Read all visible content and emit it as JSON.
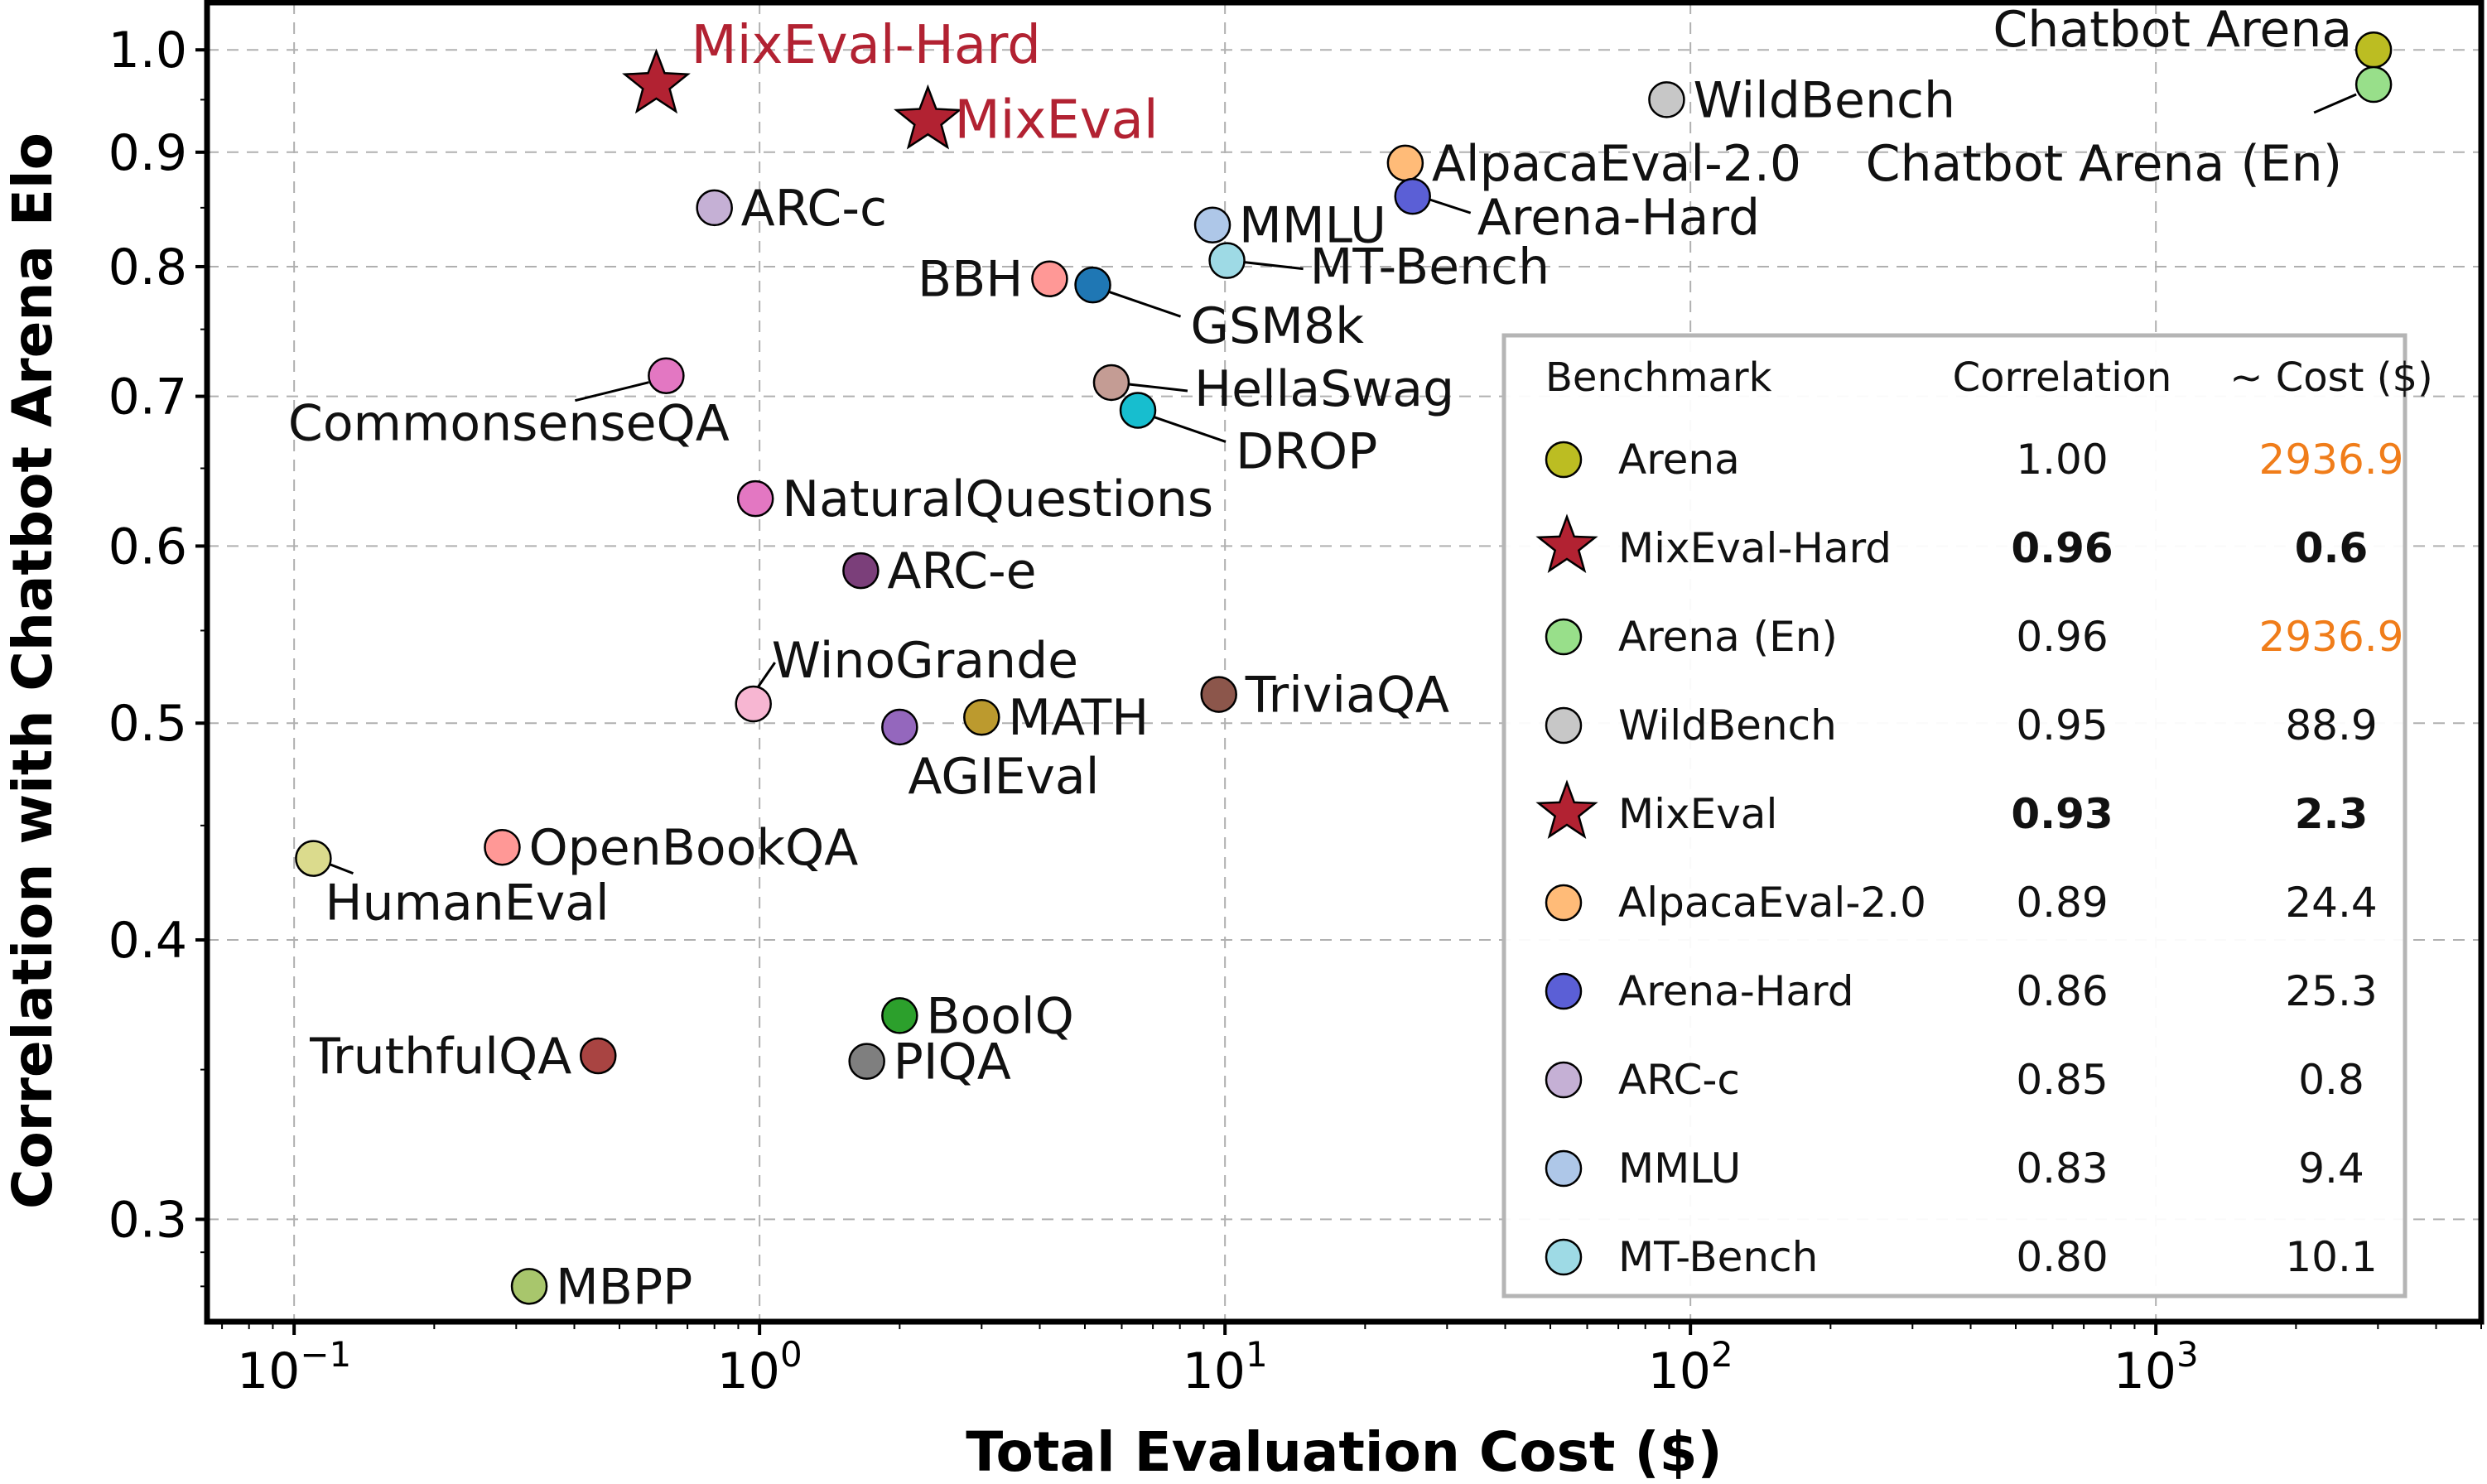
{
  "chart_data": {
    "type": "scatter",
    "xscale": "log",
    "yscale": "log",
    "xlabel": "Total Evaluation Cost ($)",
    "ylabel": "Correlation with Chatbot Arena Elo",
    "xlim": [
      0.065,
      5000
    ],
    "ylim": [
      0.27,
      1.05
    ],
    "x_ticks": [
      {
        "value": 0.1,
        "base": "10",
        "exp": "−1"
      },
      {
        "value": 1,
        "base": "10",
        "exp": "0"
      },
      {
        "value": 10,
        "base": "10",
        "exp": "1"
      },
      {
        "value": 100,
        "base": "10",
        "exp": "2"
      },
      {
        "value": 1000,
        "base": "10",
        "exp": "3"
      }
    ],
    "y_ticks": [
      {
        "value": 0.3,
        "label": "0.3"
      },
      {
        "value": 0.4,
        "label": "0.4"
      },
      {
        "value": 0.5,
        "label": "0.5"
      },
      {
        "value": 0.6,
        "label": "0.6"
      },
      {
        "value": 0.7,
        "label": "0.7"
      },
      {
        "value": 0.8,
        "label": "0.8"
      },
      {
        "value": 0.9,
        "label": "0.9"
      },
      {
        "value": 1.0,
        "label": "1.0"
      }
    ],
    "grid": true,
    "points": [
      {
        "name": "Chatbot Arena",
        "x": 2936.9,
        "y": 1.0,
        "color": "#bcbd22",
        "marker": "circle",
        "label_pos": "left-up"
      },
      {
        "name": "Chatbot Arena (En)",
        "x": 2936.9,
        "y": 0.965,
        "color": "#98df8a",
        "marker": "circle",
        "label_pos": "below-left-line"
      },
      {
        "name": "MixEval-Hard",
        "x": 0.6,
        "y": 0.965,
        "color": "#b22232",
        "marker": "star",
        "label_pos": "upper-right",
        "highlight": true
      },
      {
        "name": "MixEval",
        "x": 2.3,
        "y": 0.93,
        "color": "#b22232",
        "marker": "star",
        "label_pos": "right",
        "highlight": true
      },
      {
        "name": "WildBench",
        "x": 88.9,
        "y": 0.95,
        "color": "#c7c7c7",
        "marker": "circle",
        "label_pos": "right"
      },
      {
        "name": "AlpacaEval-2.0",
        "x": 24.4,
        "y": 0.89,
        "color": "#ffbb78",
        "marker": "circle",
        "label_pos": "right"
      },
      {
        "name": "Arena-Hard",
        "x": 25.3,
        "y": 0.86,
        "color": "#5b5fd6",
        "marker": "circle",
        "label_pos": "right-down-line"
      },
      {
        "name": "ARC-c",
        "x": 0.8,
        "y": 0.85,
        "color": "#c5b0d5",
        "marker": "circle",
        "label_pos": "right"
      },
      {
        "name": "MMLU",
        "x": 9.4,
        "y": 0.835,
        "color": "#aec7e8",
        "marker": "circle",
        "label_pos": "right"
      },
      {
        "name": "MT-Bench",
        "x": 10.1,
        "y": 0.805,
        "color": "#9edae5",
        "marker": "circle",
        "label_pos": "right-line"
      },
      {
        "name": "BBH",
        "x": 4.2,
        "y": 0.79,
        "color": "#ff9896",
        "marker": "circle",
        "label_pos": "left"
      },
      {
        "name": "GSM8k",
        "x": 5.2,
        "y": 0.785,
        "color": "#1f77b4",
        "marker": "circle",
        "label_pos": "below-right-line"
      },
      {
        "name": "CommonsenseQA",
        "x": 0.63,
        "y": 0.715,
        "color": "#e377c2",
        "marker": "circle",
        "label_pos": "below-left-line"
      },
      {
        "name": "HellaSwag",
        "x": 5.7,
        "y": 0.71,
        "color": "#c49c94",
        "marker": "circle",
        "label_pos": "right-line"
      },
      {
        "name": "DROP",
        "x": 6.5,
        "y": 0.69,
        "color": "#17becf",
        "marker": "circle",
        "label_pos": "below-right-line"
      },
      {
        "name": "NaturalQuestions",
        "x": 0.98,
        "y": 0.63,
        "color": "#e377c2",
        "marker": "circle",
        "label_pos": "right"
      },
      {
        "name": "ARC-e",
        "x": 1.65,
        "y": 0.585,
        "color": "#7b3f7a",
        "marker": "circle",
        "label_pos": "right"
      },
      {
        "name": "WinoGrande",
        "x": 0.97,
        "y": 0.51,
        "color": "#f7b6d2",
        "marker": "circle",
        "label_pos": "above-right-line"
      },
      {
        "name": "TriviaQA",
        "x": 9.7,
        "y": 0.515,
        "color": "#8c564b",
        "marker": "circle",
        "label_pos": "right"
      },
      {
        "name": "MATH",
        "x": 3.0,
        "y": 0.503,
        "color": "#bc9a2e",
        "marker": "circle",
        "label_pos": "right"
      },
      {
        "name": "AGIEval",
        "x": 2.0,
        "y": 0.498,
        "color": "#9467bd",
        "marker": "circle",
        "label_pos": "below-right"
      },
      {
        "name": "OpenBookQA",
        "x": 0.28,
        "y": 0.44,
        "color": "#ff9896",
        "marker": "circle",
        "label_pos": "right"
      },
      {
        "name": "HumanEval",
        "x": 0.11,
        "y": 0.435,
        "color": "#dbdb8d",
        "marker": "circle",
        "label_pos": "below-right-line"
      },
      {
        "name": "BoolQ",
        "x": 2.0,
        "y": 0.37,
        "color": "#2ca02c",
        "marker": "circle",
        "label_pos": "right"
      },
      {
        "name": "TruthfulQA",
        "x": 0.45,
        "y": 0.355,
        "color": "#a94442",
        "marker": "circle",
        "label_pos": "left"
      },
      {
        "name": "PIQA",
        "x": 1.7,
        "y": 0.353,
        "color": "#7f7f7f",
        "marker": "circle",
        "label_pos": "right"
      },
      {
        "name": "MBPP",
        "x": 0.32,
        "y": 0.28,
        "color": "#a8c66c",
        "marker": "circle",
        "label_pos": "right"
      }
    ],
    "legend_table": {
      "headers": [
        "Benchmark",
        "Correlation",
        "~ Cost ($)"
      ],
      "rows": [
        {
          "name": "Arena",
          "corr": "1.00",
          "cost": "2936.9",
          "color": "#bcbd22",
          "marker": "circle",
          "cost_style": "orange"
        },
        {
          "name": "MixEval-Hard",
          "corr": "0.96",
          "cost": "0.6",
          "color": "#b22232",
          "marker": "star",
          "bold": true
        },
        {
          "name": "Arena (En)",
          "corr": "0.96",
          "cost": "2936.9",
          "color": "#98df8a",
          "marker": "circle",
          "cost_style": "orange"
        },
        {
          "name": "WildBench",
          "corr": "0.95",
          "cost": "88.9",
          "color": "#c7c7c7",
          "marker": "circle"
        },
        {
          "name": "MixEval",
          "corr": "0.93",
          "cost": "2.3",
          "color": "#b22232",
          "marker": "star",
          "bold": true
        },
        {
          "name": "AlpacaEval-2.0",
          "corr": "0.89",
          "cost": "24.4",
          "color": "#ffbb78",
          "marker": "circle"
        },
        {
          "name": "Arena-Hard",
          "corr": "0.86",
          "cost": "25.3",
          "color": "#5b5fd6",
          "marker": "circle"
        },
        {
          "name": "ARC-c",
          "corr": "0.85",
          "cost": "0.8",
          "color": "#c5b0d5",
          "marker": "circle"
        },
        {
          "name": "MMLU",
          "corr": "0.83",
          "cost": "9.4",
          "color": "#aec7e8",
          "marker": "circle"
        },
        {
          "name": "MT-Bench",
          "corr": "0.80",
          "cost": "10.1",
          "color": "#9edae5",
          "marker": "circle"
        }
      ]
    }
  }
}
